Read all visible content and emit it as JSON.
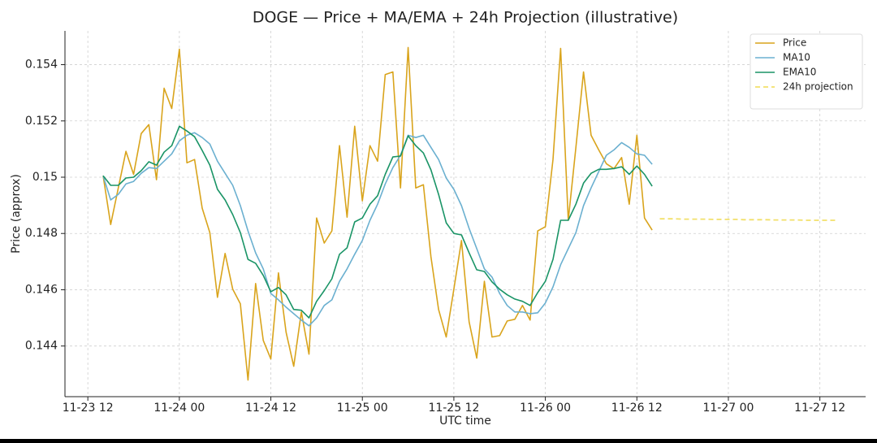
{
  "chart_data": {
    "type": "line",
    "title": "DOGE — Price + MA/EMA + 24h Projection (illustrative)",
    "x_label": "UTC time",
    "y_label": "Price (approx)",
    "x": [
      "11-23 14",
      "11-23 15",
      "11-23 16",
      "11-23 17",
      "11-23 18",
      "11-23 19",
      "11-23 20",
      "11-23 21",
      "11-23 22",
      "11-23 23",
      "11-24 00",
      "11-24 01",
      "11-24 02",
      "11-24 03",
      "11-24 04",
      "11-24 05",
      "11-24 06",
      "11-24 07",
      "11-24 08",
      "11-24 09",
      "11-24 10",
      "11-24 11",
      "11-24 12",
      "11-24 13",
      "11-24 14",
      "11-24 15",
      "11-24 16",
      "11-24 17",
      "11-24 18",
      "11-24 19",
      "11-24 20",
      "11-24 21",
      "11-24 22",
      "11-24 23",
      "11-25 00",
      "11-25 01",
      "11-25 02",
      "11-25 03",
      "11-25 04",
      "11-25 05",
      "11-25 06",
      "11-25 07",
      "11-25 08",
      "11-25 09",
      "11-25 10",
      "11-25 11",
      "11-25 12",
      "11-25 13",
      "11-25 14",
      "11-25 15",
      "11-25 16",
      "11-25 17",
      "11-25 18",
      "11-25 19",
      "11-25 20",
      "11-25 21",
      "11-25 22",
      "11-25 23",
      "11-26 00",
      "11-26 01",
      "11-26 02",
      "11-26 03",
      "11-26 04",
      "11-26 05",
      "11-26 06",
      "11-26 07",
      "11-26 08",
      "11-26 09",
      "11-26 10",
      "11-26 11",
      "11-26 12",
      "11-26 13",
      "11-26 14"
    ],
    "series": [
      {
        "name": "Price",
        "color": "#d9a41c",
        "width": 1.6,
        "values": [
          0.15005,
          0.14832,
          0.14962,
          0.15092,
          0.1501,
          0.15155,
          0.15187,
          0.14991,
          0.15316,
          0.15244,
          0.15455,
          0.15051,
          0.15063,
          0.1489,
          0.14803,
          0.14573,
          0.14729,
          0.14602,
          0.1455,
          0.14279,
          0.14622,
          0.1442,
          0.14354,
          0.1466,
          0.14449,
          0.14328,
          0.14521,
          0.14371,
          0.14855,
          0.14766,
          0.14809,
          0.15112,
          0.14858,
          0.15181,
          0.14916,
          0.15112,
          0.15057,
          0.15365,
          0.15374,
          0.14962,
          0.15461,
          0.14962,
          0.14973,
          0.14717,
          0.1453,
          0.14432,
          0.14602,
          0.14775,
          0.14486,
          0.14357,
          0.1463,
          0.14432,
          0.14437,
          0.14489,
          0.14495,
          0.14544,
          0.14492,
          0.14809,
          0.14824,
          0.15063,
          0.15458,
          0.14847,
          0.15106,
          0.15374,
          0.15149,
          0.15097,
          0.15048,
          0.1503,
          0.1507,
          0.14904,
          0.15149,
          0.14855,
          0.14812
        ]
      },
      {
        "name": "MA10",
        "color": "#6bb0d0",
        "width": 1.6,
        "values": [
          0.15005,
          0.14919,
          0.14939,
          0.14976,
          0.14985,
          0.15014,
          0.15034,
          0.15031,
          0.15057,
          0.15083,
          0.15129,
          0.15149,
          0.15158,
          0.15141,
          0.15118,
          0.15057,
          0.15014,
          0.14971,
          0.14899,
          0.14809,
          0.14731,
          0.14674,
          0.14587,
          0.14564,
          0.14538,
          0.14515,
          0.14492,
          0.14472,
          0.145,
          0.14544,
          0.14564,
          0.1463,
          0.14674,
          0.14726,
          0.14775,
          0.14847,
          0.14904,
          0.14976,
          0.15034,
          0.15078,
          0.15149,
          0.15141,
          0.15149,
          0.15106,
          0.15063,
          0.14997,
          0.14957,
          0.14899,
          0.14818,
          0.14746,
          0.14674,
          0.14645,
          0.14587,
          0.14544,
          0.14521,
          0.14521,
          0.14515,
          0.14518,
          0.14553,
          0.1461,
          0.14689,
          0.14746,
          0.14803,
          0.14899,
          0.14962,
          0.1502,
          0.15078,
          0.15097,
          0.15123,
          0.15106,
          0.15083,
          0.15078,
          0.15046
        ]
      },
      {
        "name": "EMA10",
        "color": "#1a9466",
        "width": 1.6,
        "values": [
          0.15005,
          0.14971,
          0.14971,
          0.14997,
          0.15,
          0.15023,
          0.15055,
          0.15043,
          0.15089,
          0.15112,
          0.15181,
          0.15164,
          0.15144,
          0.15095,
          0.15043,
          0.14957,
          0.14919,
          0.14867,
          0.14803,
          0.14708,
          0.14694,
          0.14651,
          0.14593,
          0.14608,
          0.14582,
          0.1453,
          0.14527,
          0.145,
          0.14559,
          0.14597,
          0.14639,
          0.14726,
          0.14749,
          0.14841,
          0.14855,
          0.14904,
          0.14934,
          0.1501,
          0.15072,
          0.15075,
          0.15147,
          0.15112,
          0.15086,
          0.15026,
          0.14939,
          0.14838,
          0.148,
          0.14795,
          0.14731,
          0.14671,
          0.14665,
          0.14628,
          0.14602,
          0.14582,
          0.14567,
          0.14559,
          0.14544,
          0.1459,
          0.1463,
          0.14708,
          0.14847,
          0.14847,
          0.14904,
          0.14979,
          0.15014,
          0.15028,
          0.15028,
          0.15031,
          0.15037,
          0.1501,
          0.1504,
          0.1501,
          0.14968
        ]
      },
      {
        "name": "24h projection",
        "color": "#f2e06a",
        "width": 1.8,
        "dashed": true,
        "x": [
          "11-26 15",
          "11-26 16",
          "11-26 17",
          "11-26 18",
          "11-26 19",
          "11-26 20",
          "11-26 21",
          "11-26 22",
          "11-26 23",
          "11-27 00",
          "11-27 01",
          "11-27 02",
          "11-27 03",
          "11-27 04",
          "11-27 05",
          "11-27 06",
          "11-27 07",
          "11-27 08",
          "11-27 09",
          "11-27 10",
          "11-27 11",
          "11-27 12",
          "11-27 13",
          "11-27 14"
        ],
        "values": [
          0.14852,
          0.14852,
          0.14852,
          0.14851,
          0.14851,
          0.14851,
          0.14851,
          0.1485,
          0.1485,
          0.1485,
          0.1485,
          0.14849,
          0.14849,
          0.14849,
          0.14849,
          0.14848,
          0.14848,
          0.14848,
          0.14848,
          0.14847,
          0.14847,
          0.14847,
          0.14847,
          0.14847
        ]
      }
    ],
    "xlim": [
      "11-23 09",
      "11-27 18"
    ],
    "xticks": [
      "11-23 12",
      "11-24 00",
      "11-24 12",
      "11-25 00",
      "11-25 12",
      "11-26 00",
      "11-26 12",
      "11-27 00",
      "11-27 12"
    ],
    "ylim": [
      0.1422,
      0.1552
    ],
    "yticks": [
      0.144,
      0.146,
      0.148,
      0.15,
      0.152,
      0.154
    ],
    "grid": true,
    "legend": "upper right"
  }
}
